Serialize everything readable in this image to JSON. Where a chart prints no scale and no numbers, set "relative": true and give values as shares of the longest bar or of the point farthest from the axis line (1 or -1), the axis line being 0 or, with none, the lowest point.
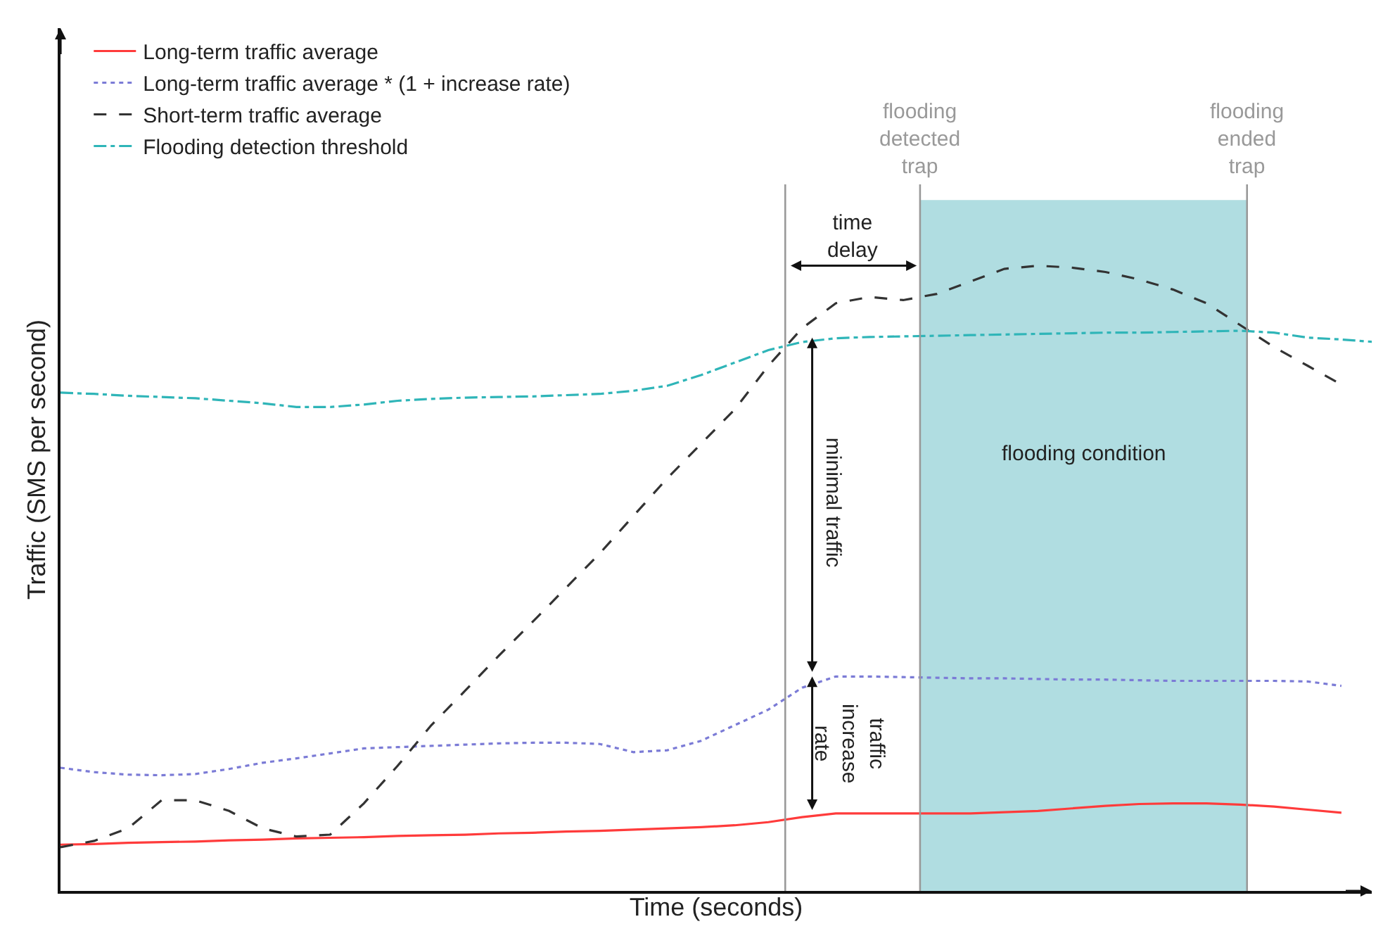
{
  "chart_data": {
    "type": "line",
    "relative": true,
    "xlabel": "Time (seconds)",
    "ylabel": "Traffic (SMS per second)",
    "categories": [
      null,
      null,
      null,
      null,
      null,
      null,
      null,
      null,
      null,
      null,
      null,
      null,
      null,
      null,
      null,
      null,
      null,
      null,
      null,
      null,
      null,
      null,
      null,
      null,
      null,
      null,
      null,
      null,
      null,
      null,
      null,
      null,
      null,
      null,
      null,
      null,
      null,
      null,
      null,
      null
    ],
    "series": [
      {
        "name": "Long-term traffic average",
        "color": "#ff3b3b",
        "line_style": "solid",
        "values": [
          0.074,
          0.075,
          0.077,
          0.078,
          0.079,
          0.081,
          0.082,
          0.084,
          0.085,
          0.086,
          0.088,
          0.089,
          0.09,
          0.092,
          0.093,
          0.095,
          0.096,
          0.098,
          0.1,
          0.102,
          0.105,
          0.11,
          0.118,
          0.124,
          0.124,
          0.124,
          0.124,
          0.124,
          0.126,
          0.128,
          0.132,
          0.136,
          0.139,
          0.14,
          0.14,
          0.138,
          0.135,
          0.13,
          0.125,
          null
        ]
      },
      {
        "name": "Long-term traffic average * (1 + increase rate)",
        "color": "#7b7bd6",
        "line_style": "dotted",
        "values": [
          0.197,
          0.19,
          0.186,
          0.185,
          0.187,
          0.195,
          0.205,
          0.212,
          0.22,
          0.228,
          0.23,
          0.232,
          0.234,
          0.236,
          0.237,
          0.237,
          0.235,
          0.222,
          0.225,
          0.24,
          0.265,
          0.29,
          0.325,
          0.343,
          0.343,
          0.342,
          0.341,
          0.34,
          0.34,
          0.339,
          0.338,
          0.338,
          0.337,
          0.336,
          0.336,
          0.336,
          0.336,
          0.335,
          0.328,
          null
        ]
      },
      {
        "name": "Short-term traffic average",
        "color": "#333333",
        "line_style": "dashed",
        "values": [
          0.07,
          0.08,
          0.1,
          0.145,
          0.145,
          0.128,
          0.1,
          0.087,
          0.09,
          0.14,
          0.2,
          0.265,
          0.32,
          0.376,
          0.43,
          0.485,
          0.54,
          0.6,
          0.66,
          0.715,
          0.77,
          0.84,
          0.9,
          0.94,
          0.95,
          0.945,
          0.955,
          0.975,
          0.995,
          1,
          0.997,
          0.99,
          0.978,
          0.962,
          0.94,
          0.905,
          0.87,
          0.84,
          0.81,
          null
        ]
      },
      {
        "name": "Flooding detection threshold",
        "color": "#2fb5b8",
        "line_style": "dashdot",
        "values": [
          0.797,
          0.795,
          0.792,
          0.79,
          0.788,
          0.784,
          0.78,
          0.774,
          0.774,
          0.778,
          0.784,
          0.787,
          0.789,
          0.79,
          0.791,
          0.793,
          0.795,
          0.8,
          0.808,
          0.825,
          0.845,
          0.865,
          0.878,
          0.884,
          0.886,
          0.887,
          0.888,
          0.889,
          0.89,
          0.891,
          0.892,
          0.893,
          0.893,
          0.894,
          0.895,
          0.896,
          0.893,
          0.885,
          0.882,
          0.878
        ]
      }
    ],
    "annotations": [
      "flooding detected trap",
      "flooding ended trap",
      "flooding condition",
      "time delay",
      "minimal traffic",
      "traffic increase rate"
    ],
    "legend": "top left",
    "grid": false,
    "marker": "none"
  }
}
